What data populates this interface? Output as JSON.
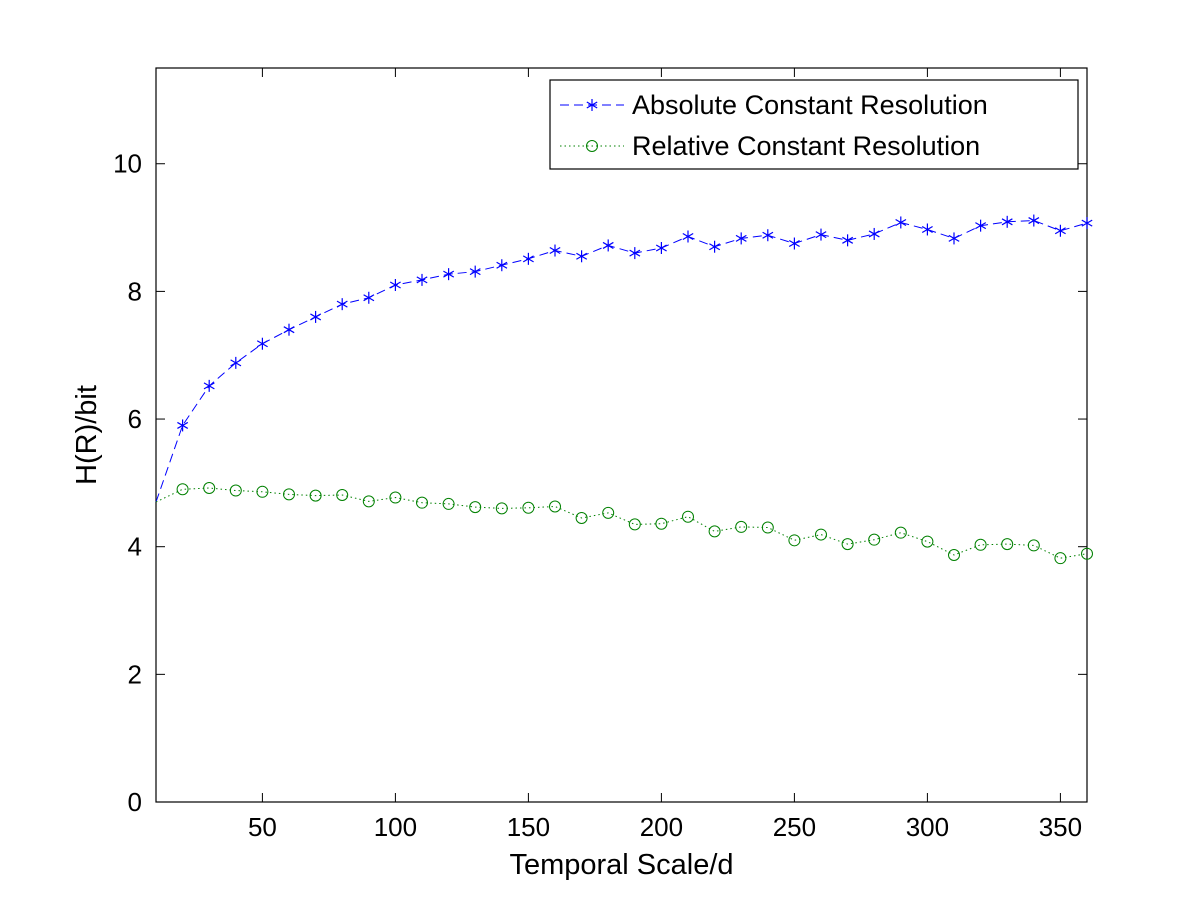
{
  "chart_data": {
    "type": "line",
    "title": "",
    "xlabel": "Temporal Scale/d",
    "ylabel": "H(R)/bit",
    "xlim": [
      10,
      360
    ],
    "ylim": [
      0,
      11.5
    ],
    "xticks": [
      50,
      100,
      150,
      200,
      250,
      300,
      350
    ],
    "yticks": [
      0,
      2,
      4,
      6,
      8,
      10
    ],
    "grid": false,
    "legend_position": "top-right",
    "x": [
      10,
      20,
      30,
      40,
      50,
      60,
      70,
      80,
      90,
      100,
      110,
      120,
      130,
      140,
      150,
      160,
      170,
      180,
      190,
      200,
      210,
      220,
      230,
      240,
      250,
      260,
      270,
      280,
      290,
      300,
      310,
      320,
      330,
      340,
      350,
      360
    ],
    "series": [
      {
        "name": "Absolute Constant Resolution",
        "color": "#0000ff",
        "line_style": "dashed",
        "marker": "asterisk",
        "values": [
          4.7,
          5.9,
          6.52,
          6.88,
          7.18,
          7.4,
          7.6,
          7.8,
          7.9,
          8.1,
          8.18,
          8.27,
          8.31,
          8.41,
          8.51,
          8.64,
          8.55,
          8.72,
          8.6,
          8.68,
          8.86,
          8.7,
          8.83,
          8.88,
          8.75,
          8.89,
          8.8,
          8.9,
          9.08,
          8.97,
          8.83,
          9.03,
          9.09,
          9.11,
          8.95,
          9.07
        ]
      },
      {
        "name": "Relative Constant Resolution",
        "color": "#008000",
        "line_style": "dotted",
        "marker": "circle",
        "values": [
          4.7,
          4.9,
          4.92,
          4.88,
          4.86,
          4.82,
          4.8,
          4.81,
          4.71,
          4.77,
          4.69,
          4.67,
          4.62,
          4.6,
          4.61,
          4.63,
          4.45,
          4.53,
          4.35,
          4.36,
          4.47,
          4.24,
          4.31,
          4.3,
          4.1,
          4.19,
          4.04,
          4.11,
          4.22,
          4.08,
          3.87,
          4.03,
          4.04,
          4.02,
          3.82,
          3.89
        ]
      }
    ]
  }
}
